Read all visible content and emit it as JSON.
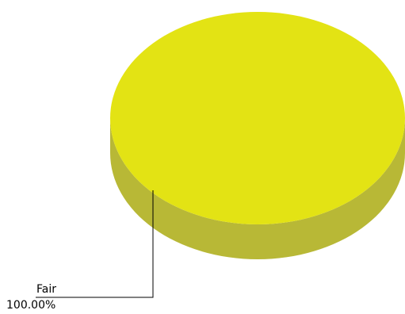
{
  "chart_data": {
    "type": "pie",
    "categories": [
      "Fair"
    ],
    "values": [
      100
    ],
    "slice_labels": [
      {
        "category": "Fair",
        "percent": "100.00%"
      }
    ],
    "colors": {
      "top": "#e3e314",
      "side": "#b8b836",
      "leader": "#000000"
    }
  }
}
